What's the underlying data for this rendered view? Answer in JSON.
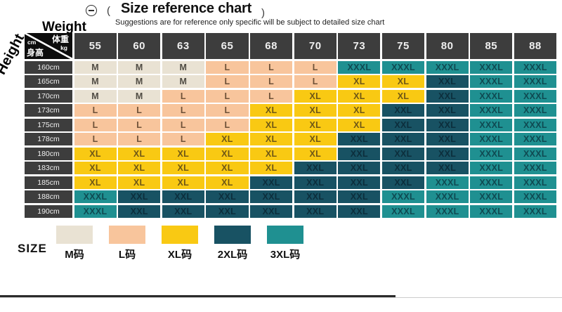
{
  "header": {
    "open_paren": "(",
    "title": "Size reference chart",
    "close_paren": ")",
    "subtitle": "Suggestions are for reference only specific will be subject to detailed size chart"
  },
  "axes": {
    "weight_label": "Weight",
    "height_label": "Height",
    "corner": {
      "weight_cn": "体重",
      "weight_unit": "kg",
      "height_unit": "cm",
      "height_cn": "身高"
    }
  },
  "chart_data": {
    "type": "table",
    "title": "Size reference chart",
    "x_axis": "Weight (kg)",
    "y_axis": "Height (cm)",
    "columns_weight_kg": [
      "55",
      "60",
      "63",
      "65",
      "68",
      "70",
      "73",
      "75",
      "80",
      "85",
      "88"
    ],
    "rows": [
      {
        "height": "160cm",
        "sizes": [
          "M",
          "M",
          "M",
          "L",
          "L",
          "L",
          "XXXL",
          "XXXL",
          "XXXL",
          "XXXL",
          "XXXL"
        ]
      },
      {
        "height": "165cm",
        "sizes": [
          "M",
          "M",
          "M",
          "L",
          "L",
          "L",
          "XL",
          "XL",
          "XXL",
          "XXXL",
          "XXXL"
        ]
      },
      {
        "height": "170cm",
        "sizes": [
          "M",
          "M",
          "L",
          "L",
          "L",
          "XL",
          "XL",
          "XL",
          "XXL",
          "XXXL",
          "XXXL"
        ]
      },
      {
        "height": "173cm",
        "sizes": [
          "L",
          "L",
          "L",
          "L",
          "XL",
          "XL",
          "XL",
          "XXL",
          "XXL",
          "XXXL",
          "XXXL"
        ]
      },
      {
        "height": "175cm",
        "sizes": [
          "L",
          "L",
          "L",
          "L",
          "XL",
          "XL",
          "XL",
          "XXL",
          "XXL",
          "XXXL",
          "XXXL"
        ]
      },
      {
        "height": "178cm",
        "sizes": [
          "L",
          "L",
          "L",
          "XL",
          "XL",
          "XL",
          "XXL",
          "XXL",
          "XXL",
          "XXXL",
          "XXXL"
        ]
      },
      {
        "height": "180cm",
        "sizes": [
          "XL",
          "XL",
          "XL",
          "XL",
          "XL",
          "XL",
          "XXL",
          "XXL",
          "XXL",
          "XXXL",
          "XXXL"
        ]
      },
      {
        "height": "183cm",
        "sizes": [
          "XL",
          "XL",
          "XL",
          "XL",
          "XL",
          "XXL",
          "XXL",
          "XXL",
          "XXL",
          "XXXL",
          "XXXL"
        ]
      },
      {
        "height": "185cm",
        "sizes": [
          "XL",
          "XL",
          "XL",
          "XL",
          "XXL",
          "XXL",
          "XXL",
          "XXL",
          "XXXL",
          "XXXL",
          "XXXL"
        ]
      },
      {
        "height": "188cm",
        "sizes": [
          "XXXL",
          "XXL",
          "XXL",
          "XXL",
          "XXL",
          "XXL",
          "XXL",
          "XXXL",
          "XXXL",
          "XXXL",
          "XXXL"
        ]
      },
      {
        "height": "190cm",
        "sizes": [
          "XXXL",
          "XXL",
          "XXL",
          "XXL",
          "XXL",
          "XXL",
          "XXL",
          "XXXL",
          "XXXL",
          "XXXL",
          "XXXL"
        ]
      }
    ]
  },
  "legend": {
    "label": "SIZE",
    "items": [
      {
        "label": "M码",
        "size": "M"
      },
      {
        "label": "L码",
        "size": "L"
      },
      {
        "label": "XL码",
        "size": "XL"
      },
      {
        "label": "2XL码",
        "size": "XXL"
      },
      {
        "label": "3XL码",
        "size": "XXXL"
      }
    ]
  },
  "colors": {
    "M": {
      "bg": "#e9e2d3",
      "text": "#504c44"
    },
    "L": {
      "bg": "#f8c59c",
      "text": "#6e5138"
    },
    "XL": {
      "bg": "#f9c913",
      "text": "#6e5716"
    },
    "XXL": {
      "bg": "#185263",
      "text": "#0c2e3c"
    },
    "XXXL": {
      "bg": "#1f9091",
      "text": "#0f4a52"
    },
    "header_bg": "#3d3d3d",
    "header_text": "#efefef",
    "corner_bg": "#0d0d0d",
    "corner_text": "#ffffff"
  }
}
